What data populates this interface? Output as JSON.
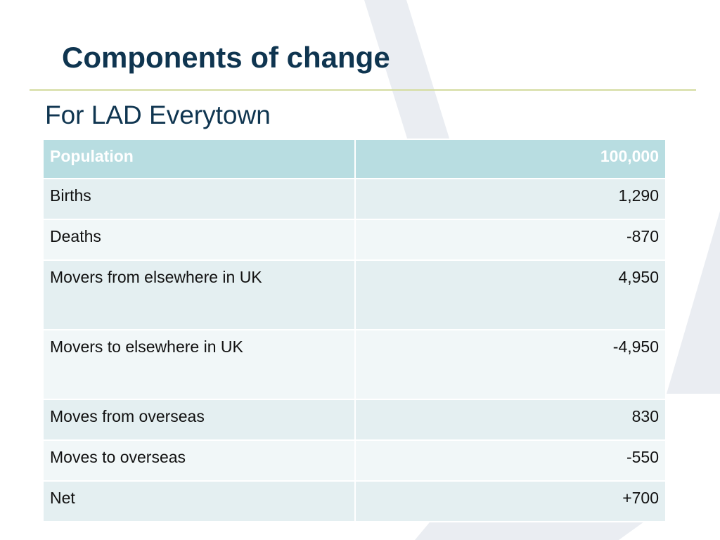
{
  "slide": {
    "title": "Components of change",
    "subtitle": "For LAD Everytown"
  },
  "table": {
    "header": {
      "label": "Population",
      "value": "100,000"
    },
    "rows": [
      {
        "label": "Births",
        "value": "1,290"
      },
      {
        "label": "Deaths",
        "value": "-870"
      },
      {
        "label": "Movers from elsewhere in UK",
        "value": "4,950"
      },
      {
        "label": "Movers to elsewhere in UK",
        "value": "-4,950"
      },
      {
        "label": "Moves from overseas",
        "value": "830"
      },
      {
        "label": "Moves to overseas",
        "value": "-550"
      },
      {
        "label": "Net",
        "value": "+700"
      }
    ]
  },
  "colors": {
    "title_text": "#0f3550",
    "header_background": "#b8dde1",
    "row_background_dark": "#e4eff1",
    "row_background_light": "#f1f7f8",
    "title_rule": "#d4dca0",
    "decor_shapes": "#eaedf2"
  }
}
